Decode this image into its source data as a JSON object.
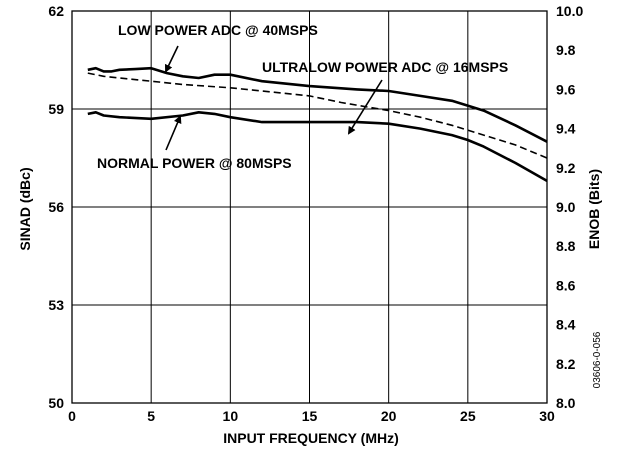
{
  "chart_data": {
    "type": "line",
    "xlabel": "INPUT FREQUENCY (MHz)",
    "ylabel": "SINAD (dBc)",
    "y2label": "ENOB (Bits)",
    "xlim": [
      0,
      30
    ],
    "ylim": [
      50,
      62
    ],
    "y2lim": [
      8.0,
      10.0
    ],
    "x_ticks": [
      "0",
      "5",
      "10",
      "15",
      "20",
      "25",
      "30"
    ],
    "y_ticks": [
      "50",
      "53",
      "56",
      "59",
      "62"
    ],
    "y2_ticks": [
      "8.0",
      "8.2",
      "8.4",
      "8.6",
      "8.8",
      "9.0",
      "9.2",
      "9.4",
      "9.6",
      "9.8",
      "10.0"
    ],
    "grid": true,
    "figure_id": "03606-0-056",
    "annotations": [
      {
        "text": "LOW POWER ADC @ 40MSPS",
        "series": 0
      },
      {
        "text": "ULTRALOW POWER ADC @ 16MSPS",
        "series": 1
      },
      {
        "text": "NORMAL POWER @ 80MSPS",
        "series": 2
      }
    ],
    "series": [
      {
        "style": "solid",
        "x": [
          1,
          1.5,
          2,
          2.5,
          3,
          4,
          5,
          6,
          7,
          8,
          9,
          10,
          12,
          15,
          18,
          20,
          22,
          24,
          26,
          28,
          30
        ],
        "y": [
          60.2,
          60.25,
          60.15,
          60.15,
          60.2,
          60.22,
          60.25,
          60.1,
          60.0,
          59.95,
          60.05,
          60.05,
          59.85,
          59.7,
          59.6,
          59.55,
          59.4,
          59.25,
          58.95,
          58.5,
          58.0
        ]
      },
      {
        "style": "dashed",
        "x": [
          1,
          1.5,
          2,
          3,
          5,
          7,
          10,
          12,
          15,
          17,
          20,
          22,
          24,
          26,
          28,
          30
        ],
        "y": [
          60.1,
          60.05,
          60.0,
          59.95,
          59.85,
          59.75,
          59.65,
          59.55,
          59.4,
          59.2,
          58.95,
          58.75,
          58.5,
          58.2,
          57.9,
          57.5
        ]
      },
      {
        "style": "solid",
        "x": [
          1,
          1.5,
          2,
          3,
          5,
          7,
          8,
          9,
          10,
          12,
          15,
          18,
          20,
          22,
          24,
          25,
          26,
          28,
          30
        ],
        "y": [
          58.85,
          58.9,
          58.8,
          58.75,
          58.7,
          58.8,
          58.9,
          58.85,
          58.75,
          58.6,
          58.6,
          58.6,
          58.55,
          58.4,
          58.2,
          58.05,
          57.85,
          57.35,
          56.8
        ]
      }
    ]
  }
}
